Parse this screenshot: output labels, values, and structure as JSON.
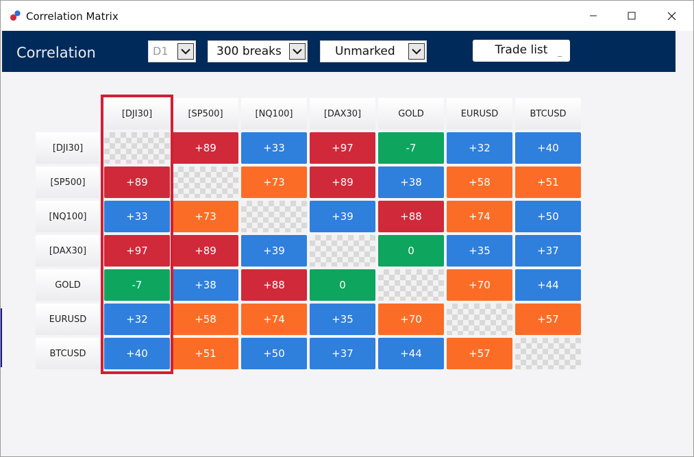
{
  "window": {
    "title": "Correlation Matrix",
    "icon": "app-logo-dots"
  },
  "toolbar": {
    "title": "Correlation",
    "timeframe": {
      "value": "D1",
      "icon": "chevron-down-icon"
    },
    "breaks": {
      "value": "300 breaks",
      "icon": "chevron-down-icon"
    },
    "marking": {
      "value": "Unmarked",
      "icon": "chevron-down-icon"
    },
    "trade_list_label": "Trade list",
    "background_color": "#002a5a"
  },
  "matrix": {
    "symbols": [
      "[DJI30]",
      "[SP500]",
      "[NQ100]",
      "[DAX30]",
      "GOLD",
      "EURUSD",
      "BTCUSD"
    ],
    "highlighted_column": "[DJI30]",
    "colors": {
      "red": "#d0293a",
      "blue": "#2f7fdc",
      "orange": "#fb6d26",
      "green": "#0ea55e",
      "highlight": "#d21f33"
    },
    "rows": [
      [
        null,
        "+89",
        "+33",
        "+97",
        "-7",
        "+32",
        "+40"
      ],
      [
        "+89",
        null,
        "+73",
        "+89",
        "+38",
        "+58",
        "+51"
      ],
      [
        "+33",
        "+73",
        null,
        "+39",
        "+88",
        "+74",
        "+50"
      ],
      [
        "+97",
        "+89",
        "+39",
        null,
        "0",
        "+35",
        "+37"
      ],
      [
        "-7",
        "+38",
        "+88",
        "0",
        null,
        "+70",
        "+44"
      ],
      [
        "+32",
        "+58",
        "+74",
        "+35",
        "+70",
        null,
        "+57"
      ],
      [
        "+40",
        "+51",
        "+50",
        "+37",
        "+44",
        "+57",
        null
      ]
    ],
    "cell_colors": [
      [
        null,
        "red",
        "blue",
        "red",
        "green",
        "blue",
        "blue"
      ],
      [
        "red",
        null,
        "orange",
        "red",
        "blue",
        "orange",
        "orange"
      ],
      [
        "blue",
        "orange",
        null,
        "blue",
        "red",
        "orange",
        "blue"
      ],
      [
        "red",
        "red",
        "blue",
        null,
        "green",
        "blue",
        "blue"
      ],
      [
        "green",
        "blue",
        "red",
        "green",
        null,
        "orange",
        "blue"
      ],
      [
        "blue",
        "orange",
        "orange",
        "blue",
        "orange",
        null,
        "orange"
      ],
      [
        "blue",
        "orange",
        "blue",
        "blue",
        "blue",
        "orange",
        null
      ]
    ]
  }
}
